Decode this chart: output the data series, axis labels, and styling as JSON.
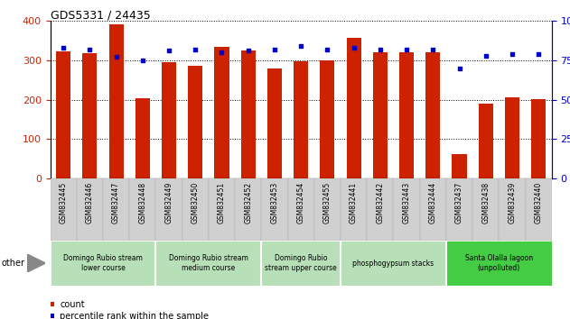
{
  "title": "GDS5331 / 24435",
  "samples": [
    "GSM832445",
    "GSM832446",
    "GSM832447",
    "GSM832448",
    "GSM832449",
    "GSM832450",
    "GSM832451",
    "GSM832452",
    "GSM832453",
    "GSM832454",
    "GSM832455",
    "GSM832441",
    "GSM832442",
    "GSM832443",
    "GSM832444",
    "GSM832437",
    "GSM832438",
    "GSM832439",
    "GSM832440"
  ],
  "counts": [
    322,
    318,
    390,
    204,
    295,
    287,
    333,
    325,
    280,
    298,
    300,
    356,
    320,
    321,
    319,
    62,
    191,
    205,
    201
  ],
  "percentiles": [
    83,
    82,
    77,
    75,
    81,
    82,
    80,
    81,
    82,
    84,
    82,
    83,
    82,
    82,
    82,
    70,
    78,
    79,
    79
  ],
  "groups": [
    {
      "label": "Domingo Rubio stream\nlower course",
      "start": 0,
      "end": 4,
      "color": "#b8e0b8"
    },
    {
      "label": "Domingo Rubio stream\nmedium course",
      "start": 4,
      "end": 8,
      "color": "#b8e0b8"
    },
    {
      "label": "Domingo Rubio\nstream upper course",
      "start": 8,
      "end": 11,
      "color": "#b8e0b8"
    },
    {
      "label": "phosphogypsum stacks",
      "start": 11,
      "end": 15,
      "color": "#b8e0b8"
    },
    {
      "label": "Santa Olalla lagoon\n(unpolluted)",
      "start": 15,
      "end": 19,
      "color": "#44cc44"
    }
  ],
  "bar_color": "#cc2200",
  "dot_color": "#0000cc",
  "left_yticks": [
    0,
    100,
    200,
    300,
    400
  ],
  "right_yticks": [
    0,
    25,
    50,
    75,
    100
  ],
  "left_ylim": [
    0,
    400
  ],
  "right_ylim": [
    0,
    100
  ],
  "left_ylabel_color": "#cc2200",
  "right_ylabel_color": "#0000cc",
  "grid_color": "black",
  "plot_bg": "#ffffff",
  "xticklabel_bg": "#d0d0d0",
  "other_label": "other",
  "legend_count": "count",
  "legend_pct": "percentile rank within the sample"
}
